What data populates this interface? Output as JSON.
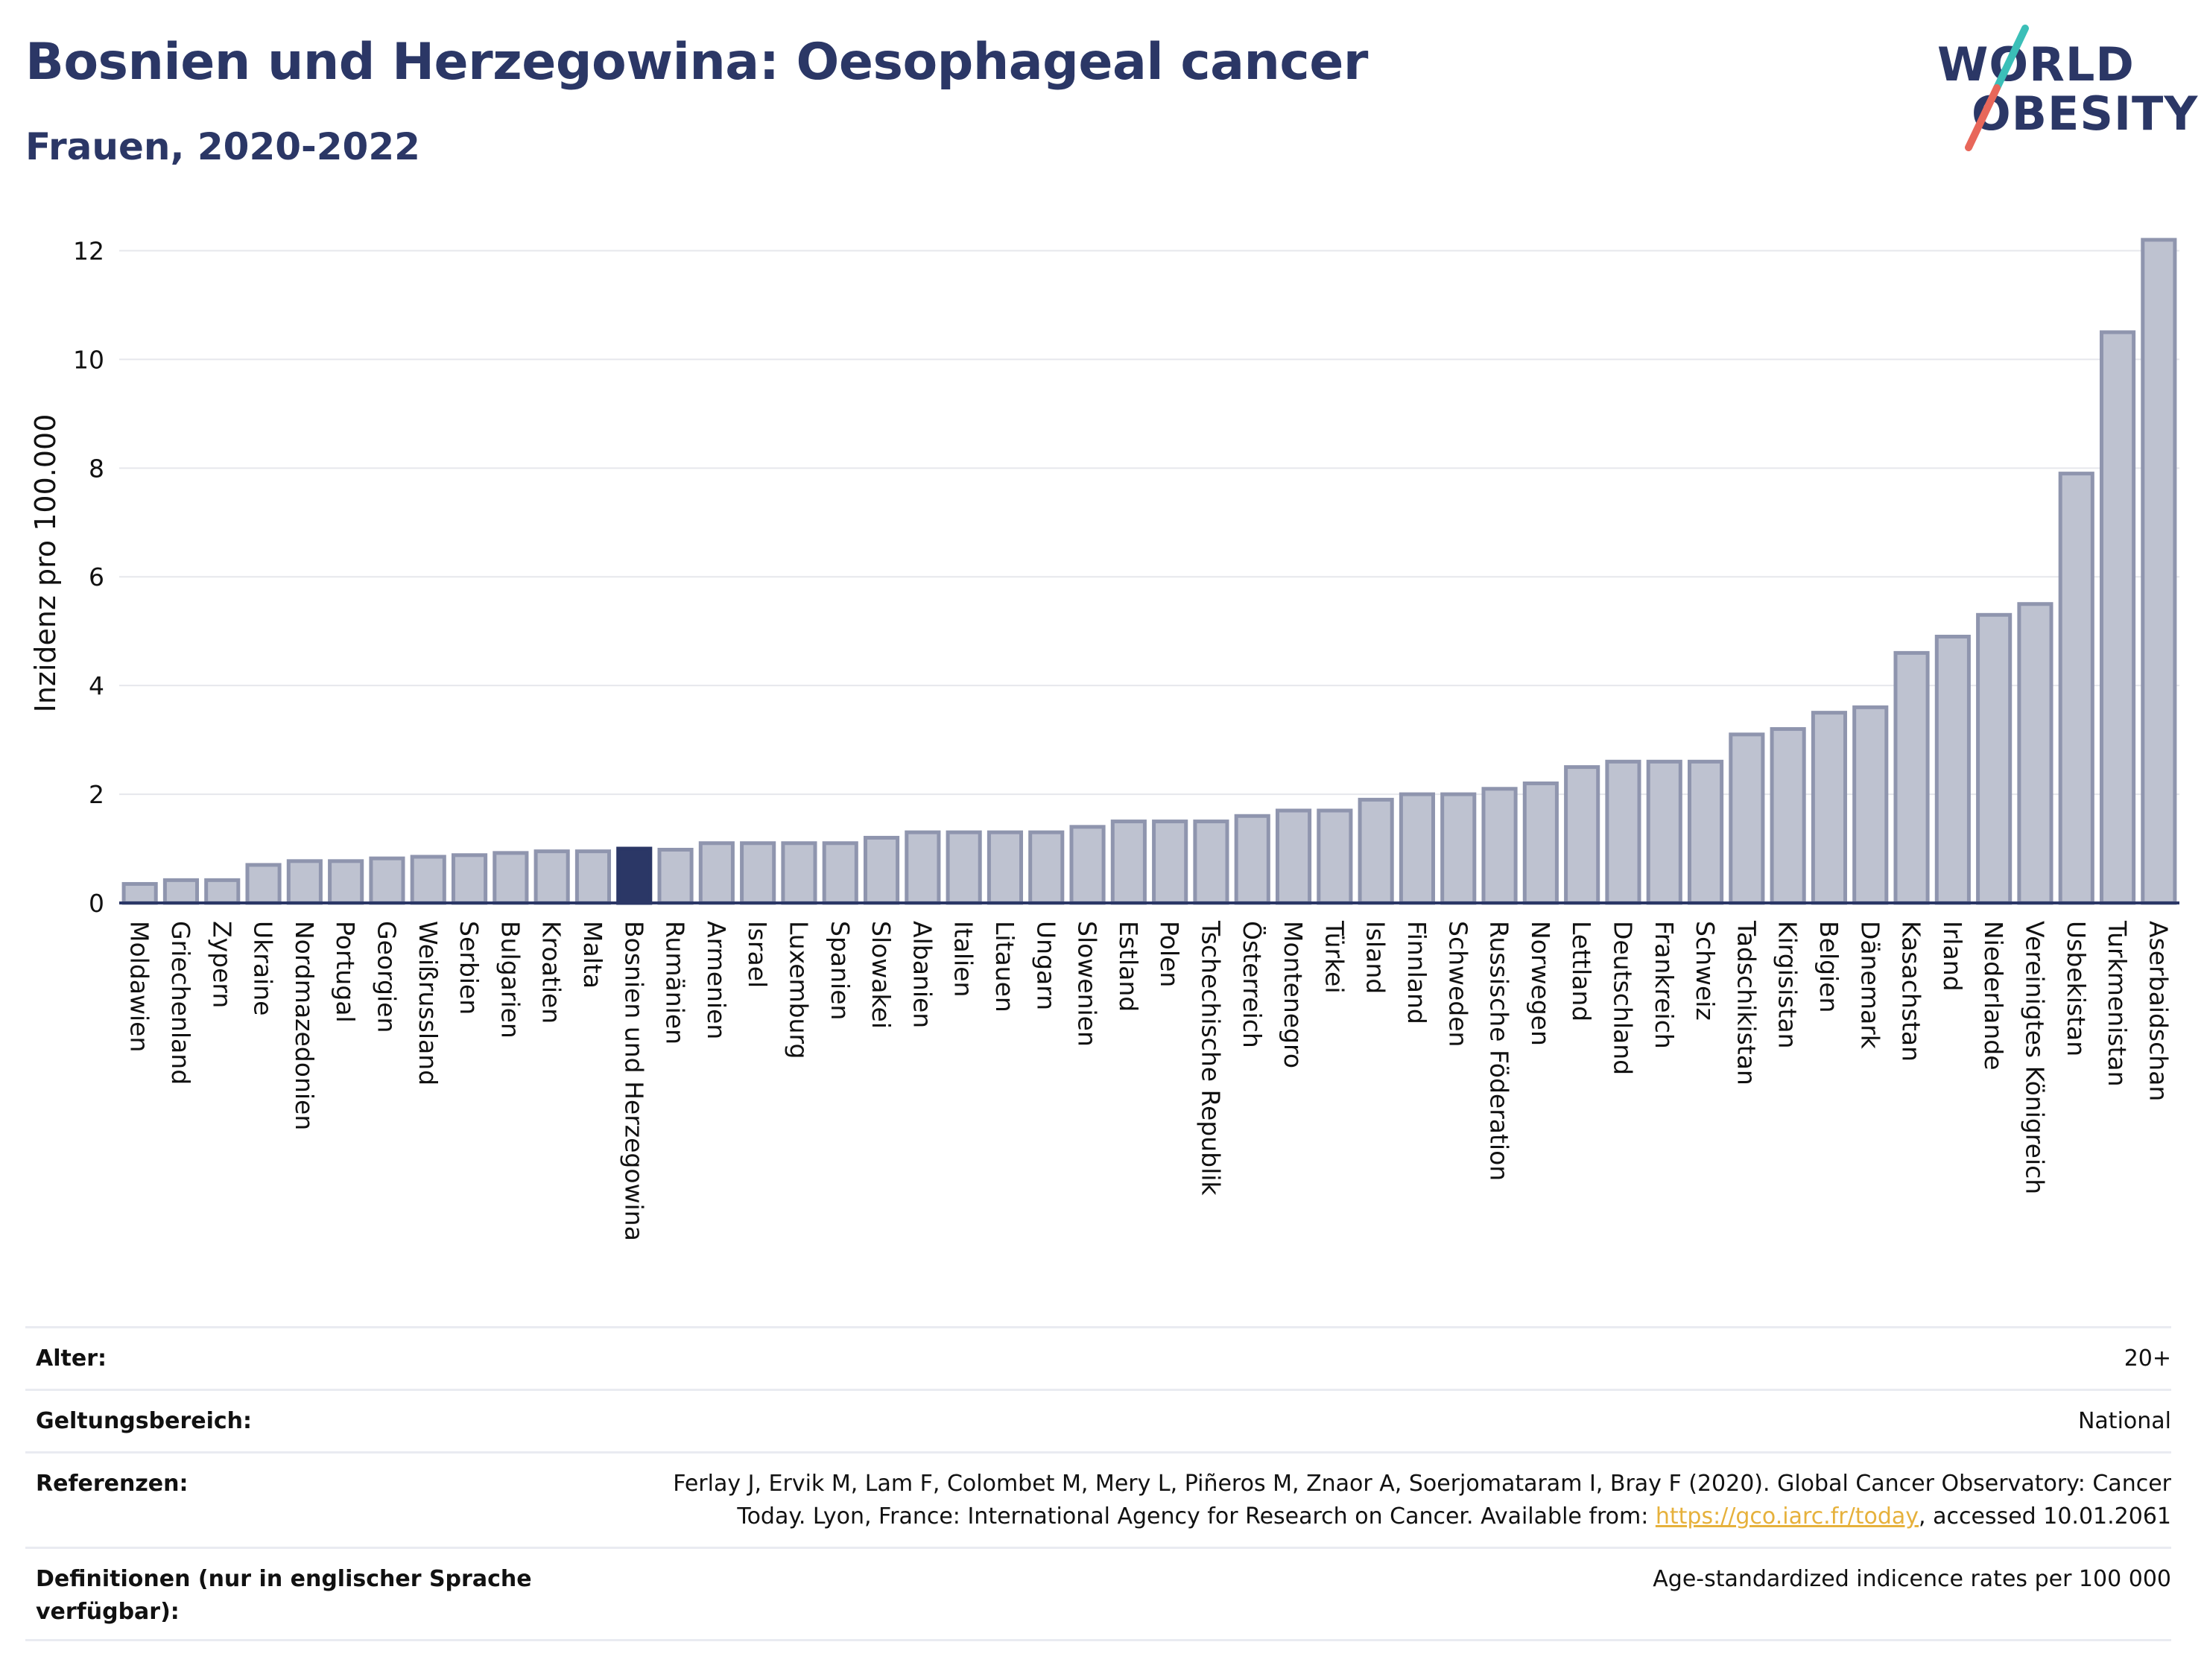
{
  "header": {
    "title": "Bosnien und Herzegowina: Oesophageal cancer",
    "subtitle": "Frauen, 2020-2022"
  },
  "logo": {
    "line1": "WORLD",
    "line2": "OBESITY",
    "accent_teal": "#3bbfb8",
    "accent_red": "#e8675a"
  },
  "colors": {
    "bar": "#bec2d0",
    "bar_border": "#8f95ae",
    "highlight": "#2b3766",
    "grid": "#e6e7ec",
    "axis": "#2b3766"
  },
  "chart_data": {
    "type": "bar",
    "title": "Bosnien und Herzegowina: Oesophageal cancer",
    "subtitle": "Frauen, 2020-2022",
    "ylabel": "Inzidenz pro 100.000",
    "xlabel": "",
    "ylim": [
      0,
      12.5
    ],
    "yticks": [
      0,
      2,
      4,
      6,
      8,
      10,
      12
    ],
    "grid": true,
    "highlight": "Bosnien und Herzegowina",
    "categories": [
      "Moldawien",
      "Griechenland",
      "Zypern",
      "Ukraine",
      "Nordmazedonien",
      "Portugal",
      "Georgien",
      "Weißrussland",
      "Serbien",
      "Bulgarien",
      "Kroatien",
      "Malta",
      "Bosnien und Herzegowina",
      "Rumänien",
      "Armenien",
      "Israel",
      "Luxemburg",
      "Spanien",
      "Slowakei",
      "Albanien",
      "Italien",
      "Litauen",
      "Ungarn",
      "Slowenien",
      "Estland",
      "Polen",
      "Tschechische Republik",
      "Österreich",
      "Montenegro",
      "Türkei",
      "Island",
      "Finnland",
      "Schweden",
      "Russische Föderation",
      "Norwegen",
      "Lettland",
      "Deutschland",
      "Frankreich",
      "Schweiz",
      "Tadschikistan",
      "Kirgisistan",
      "Belgien",
      "Dänemark",
      "Kasachstan",
      "Irland",
      "Niederlande",
      "Vereinigtes Königreich",
      "Usbekistan",
      "Turkmenistan",
      "Aserbaidschan"
    ],
    "values": [
      0.35,
      0.42,
      0.42,
      0.7,
      0.77,
      0.77,
      0.82,
      0.85,
      0.88,
      0.92,
      0.95,
      0.95,
      1.0,
      0.98,
      1.1,
      1.1,
      1.1,
      1.1,
      1.2,
      1.3,
      1.3,
      1.3,
      1.3,
      1.4,
      1.5,
      1.5,
      1.5,
      1.6,
      1.7,
      1.7,
      1.9,
      2.0,
      2.0,
      2.1,
      2.2,
      2.5,
      2.6,
      2.6,
      2.6,
      3.1,
      3.2,
      3.5,
      3.6,
      4.6,
      4.9,
      5.3,
      5.5,
      7.9,
      10.5,
      12.2
    ]
  },
  "meta": {
    "rows": [
      {
        "key": "Alter:",
        "value": "20+"
      },
      {
        "key": "Geltungsbereich:",
        "value": "National"
      },
      {
        "key": "Referenzen:",
        "value_line1": "Ferlay J, Ervik M, Lam F, Colombet M, Mery L, Piñeros M, Znaor A, Soerjomataram I, Bray F (2020). Global Cancer Observatory: Cancer",
        "value_line2_pre": "Today. Lyon, France: International Agency for Research on Cancer. Available from: ",
        "link": "https://gco.iarc.fr/today",
        "value_line2_post": ", accessed 10.01.2061"
      },
      {
        "key_line1": "Definitionen (nur in englischer Sprache",
        "key_line2": "verfügbar):",
        "value": "Age-standardized indicence rates per 100 000"
      }
    ]
  }
}
